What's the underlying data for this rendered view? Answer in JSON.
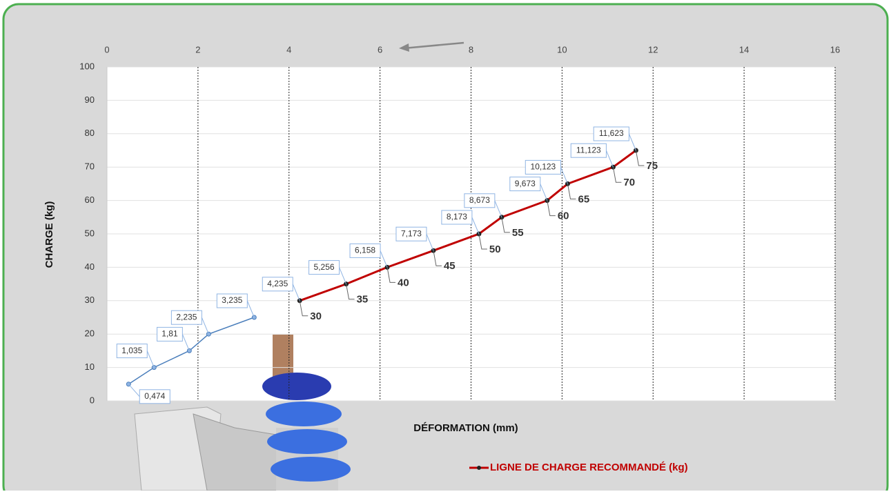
{
  "chart_data": {
    "type": "line",
    "x_label": "DÉFORMATION (mm)",
    "y_label": "CHARGE (kg)",
    "xlim": [
      0,
      16
    ],
    "xticks": [
      0,
      2,
      4,
      6,
      8,
      10,
      12,
      14,
      16
    ],
    "ylim": [
      0,
      100
    ],
    "yticks": [
      0,
      10,
      20,
      30,
      40,
      50,
      60,
      70,
      80,
      90,
      100
    ],
    "grid": true,
    "x_axis_position": "top",
    "legend": "bottom",
    "series": [
      {
        "color": "#4a7ebb",
        "x": [
          0.474,
          1.035,
          1.81,
          2.235,
          3.235
        ],
        "x_labels": [
          "0,474",
          "1,035",
          "1,81",
          "2,235",
          "3,235"
        ],
        "values": [
          5,
          10,
          15,
          20,
          25
        ]
      },
      {
        "name": "LIGNE DE CHARGE RECOMMANDÉ (kg)",
        "color": "#c00000",
        "x": [
          4.235,
          5.256,
          6.158,
          7.173,
          8.173,
          8.673,
          9.673,
          10.123,
          11.123,
          11.623
        ],
        "x_labels": [
          "4,235",
          "5,256",
          "6,158",
          "7,173",
          "8,173",
          "8,673",
          "9,673",
          "10,123",
          "11,123",
          "11,623"
        ],
        "values": [
          30,
          35,
          40,
          45,
          50,
          55,
          60,
          65,
          70,
          75
        ]
      }
    ]
  }
}
